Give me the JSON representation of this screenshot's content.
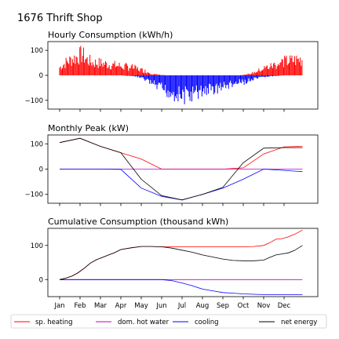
{
  "suptitle": "1676 Thrift Shop",
  "months": [
    "Jan",
    "Feb",
    "Mar",
    "Apr",
    "May",
    "Jun",
    "Jul",
    "Aug",
    "Sep",
    "Oct",
    "Nov",
    "Dec"
  ],
  "legend": [
    {
      "label": "sp. heating",
      "color": "#ff0000"
    },
    {
      "label": "dom. hot water",
      "color": "#bf00bf"
    },
    {
      "label": "cooling",
      "color": "#0000ff"
    },
    {
      "label": "net energy",
      "color": "#000000"
    }
  ],
  "chart_data": [
    {
      "type": "bar",
      "title": "Hourly Consumption (kWh/h)",
      "ylim": [
        -135,
        135
      ],
      "yticks": [
        100,
        0,
        -100
      ],
      "x_unit": "month",
      "positive_color": "#ff0000",
      "negative_color": "#0000ff",
      "envelope": {
        "x": [
          0.0,
          0.3,
          0.6,
          0.9,
          1.1,
          1.3,
          1.6,
          2.0,
          2.5,
          3.0,
          3.3,
          3.6,
          3.9,
          4.2,
          4.5,
          4.8,
          5.2,
          5.6,
          6.0,
          6.4,
          6.8,
          7.2,
          7.6,
          8.0,
          8.4,
          8.8,
          9.2,
          9.5,
          9.8,
          10.1,
          10.4,
          10.7,
          11.0,
          11.3,
          11.6,
          11.9
        ],
        "upper": [
          45,
          75,
          95,
          110,
          125,
          95,
          75,
          72,
          62,
          55,
          50,
          45,
          35,
          25,
          10,
          4,
          0,
          0,
          0,
          0,
          0,
          0,
          0,
          0,
          0,
          0,
          5,
          15,
          30,
          45,
          55,
          70,
          80,
          85,
          90,
          95
        ],
        "lower": [
          0,
          0,
          0,
          0,
          0,
          0,
          0,
          0,
          0,
          0,
          -2,
          -5,
          -10,
          -25,
          -45,
          -70,
          -90,
          -105,
          -120,
          -115,
          -100,
          -85,
          -80,
          -65,
          -55,
          -45,
          -35,
          -25,
          -15,
          -8,
          -5,
          -3,
          0,
          0,
          0,
          0
        ]
      }
    },
    {
      "type": "line",
      "title": "Monthly Peak (kW)",
      "ylim": [
        -135,
        135
      ],
      "yticks": [
        100,
        0,
        -100
      ],
      "series": [
        {
          "name": "sp. heating",
          "color": "#ff0000",
          "x": [
            0,
            1,
            2,
            3,
            4,
            5,
            6,
            7,
            8,
            9,
            10,
            11,
            11.9
          ],
          "y": [
            105,
            122,
            90,
            65,
            40,
            0,
            0,
            0,
            0,
            5,
            60,
            88,
            90
          ]
        },
        {
          "name": "dom. hot water",
          "color": "#bf00bf",
          "x": [
            0,
            1,
            2,
            3,
            4,
            5,
            6,
            7,
            8,
            9,
            10,
            11,
            11.9
          ],
          "y": [
            0,
            0,
            0,
            0,
            0,
            0,
            0,
            0,
            0,
            0,
            0,
            0,
            0
          ]
        },
        {
          "name": "cooling",
          "color": "#0000ff",
          "x": [
            0,
            1,
            2,
            3,
            4,
            5,
            6,
            7,
            8,
            9,
            10,
            11,
            11.9
          ],
          "y": [
            0,
            0,
            0,
            -1,
            -75,
            -108,
            -122,
            -100,
            -75,
            -40,
            0,
            -5,
            -10
          ]
        },
        {
          "name": "net energy",
          "color": "#000000",
          "x": [
            0,
            1,
            2,
            3,
            4,
            5,
            6,
            7,
            8,
            9,
            10,
            11,
            11.9
          ],
          "y": [
            105,
            122,
            90,
            65,
            -40,
            -105,
            -122,
            -100,
            -72,
            25,
            83,
            85,
            85
          ]
        }
      ]
    },
    {
      "type": "line",
      "title": "Cumulative Consumption (thousand kWh)",
      "ylim": [
        -50,
        150
      ],
      "yticks": [
        100,
        0
      ],
      "series": [
        {
          "name": "sp. heating",
          "color": "#ff0000",
          "x": [
            0,
            0.3,
            0.6,
            0.9,
            1.2,
            1.5,
            1.8,
            2.1,
            2.4,
            2.7,
            3.0,
            3.5,
            4.0,
            4.5,
            5.0,
            6.0,
            7.0,
            8.0,
            9.0,
            9.5,
            10.0,
            10.3,
            10.6,
            10.9,
            11.2,
            11.5,
            11.9
          ],
          "y": [
            0,
            4,
            10,
            20,
            33,
            48,
            58,
            65,
            72,
            79,
            88,
            93,
            97,
            97,
            96,
            96,
            96,
            96,
            96,
            97,
            100,
            108,
            118,
            120,
            125,
            132,
            145
          ]
        },
        {
          "name": "dom. hot water",
          "color": "#bf00bf",
          "x": [
            0,
            11.9
          ],
          "y": [
            0,
            0
          ]
        },
        {
          "name": "cooling",
          "color": "#0000ff",
          "x": [
            0,
            1,
            2,
            3,
            4,
            5,
            5.5,
            6,
            6.5,
            7,
            7.5,
            8,
            8.5,
            9,
            9.5,
            10,
            11,
            11.9
          ],
          "y": [
            0,
            0,
            0,
            0,
            0,
            0,
            -3,
            -10,
            -18,
            -28,
            -33,
            -38,
            -40,
            -42,
            -43,
            -44,
            -44,
            -44
          ]
        },
        {
          "name": "net energy",
          "color": "#000000",
          "x": [
            0,
            0.3,
            0.6,
            0.9,
            1.2,
            1.5,
            1.8,
            2.1,
            2.4,
            2.7,
            3.0,
            3.5,
            4.0,
            4.5,
            5.0,
            5.5,
            6.0,
            6.5,
            7.0,
            7.5,
            8.0,
            8.5,
            9.0,
            9.5,
            10.0,
            10.3,
            10.6,
            10.9,
            11.2,
            11.5,
            11.9
          ],
          "y": [
            0,
            4,
            10,
            20,
            33,
            48,
            58,
            65,
            72,
            79,
            88,
            93,
            97,
            97,
            96,
            92,
            86,
            80,
            72,
            66,
            60,
            56,
            55,
            55,
            57,
            65,
            72,
            75,
            78,
            85,
            100
          ]
        }
      ]
    }
  ]
}
